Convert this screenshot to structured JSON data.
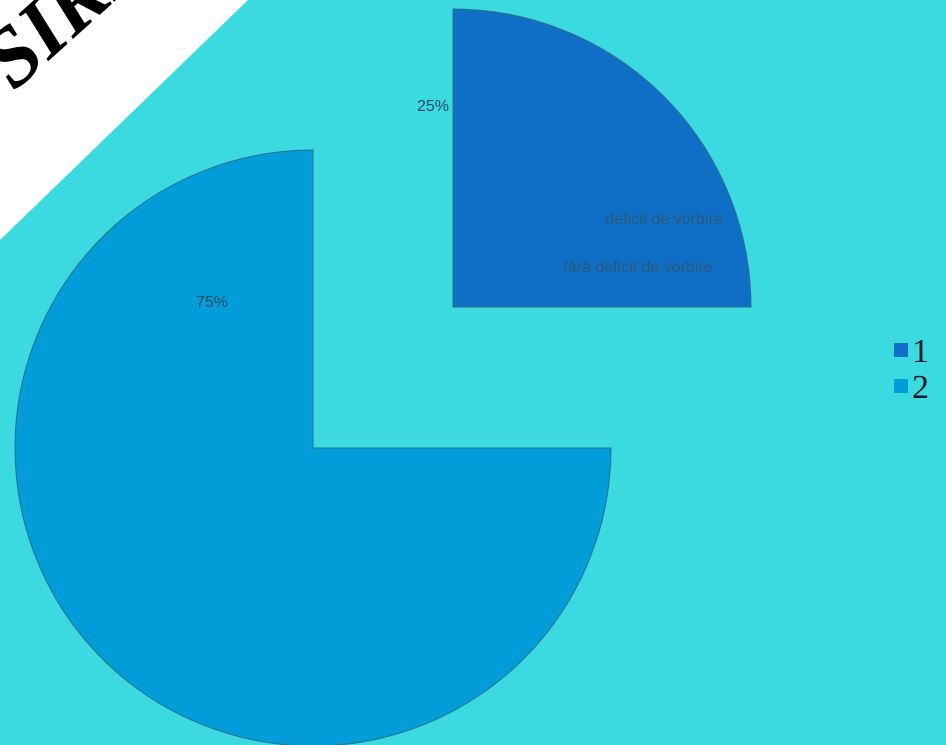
{
  "chart_data": {
    "type": "pie",
    "exploded": true,
    "series": [
      {
        "name": "1",
        "value": 25,
        "label": "25%",
        "color": "#0f6fc6"
      },
      {
        "name": "2",
        "value": 75,
        "label": "75%",
        "color": "#009dd9"
      }
    ],
    "category_labels": [
      "deficit de vorbire",
      "fără deficit de vorbire"
    ],
    "legend": {
      "placement": "right",
      "entries": [
        "1",
        "2"
      ]
    },
    "background_color": "#3bd9e0"
  },
  "corner_stamp": {
    "text": "SIRI",
    "fill": "#ffffff",
    "text_color": "#000000"
  }
}
